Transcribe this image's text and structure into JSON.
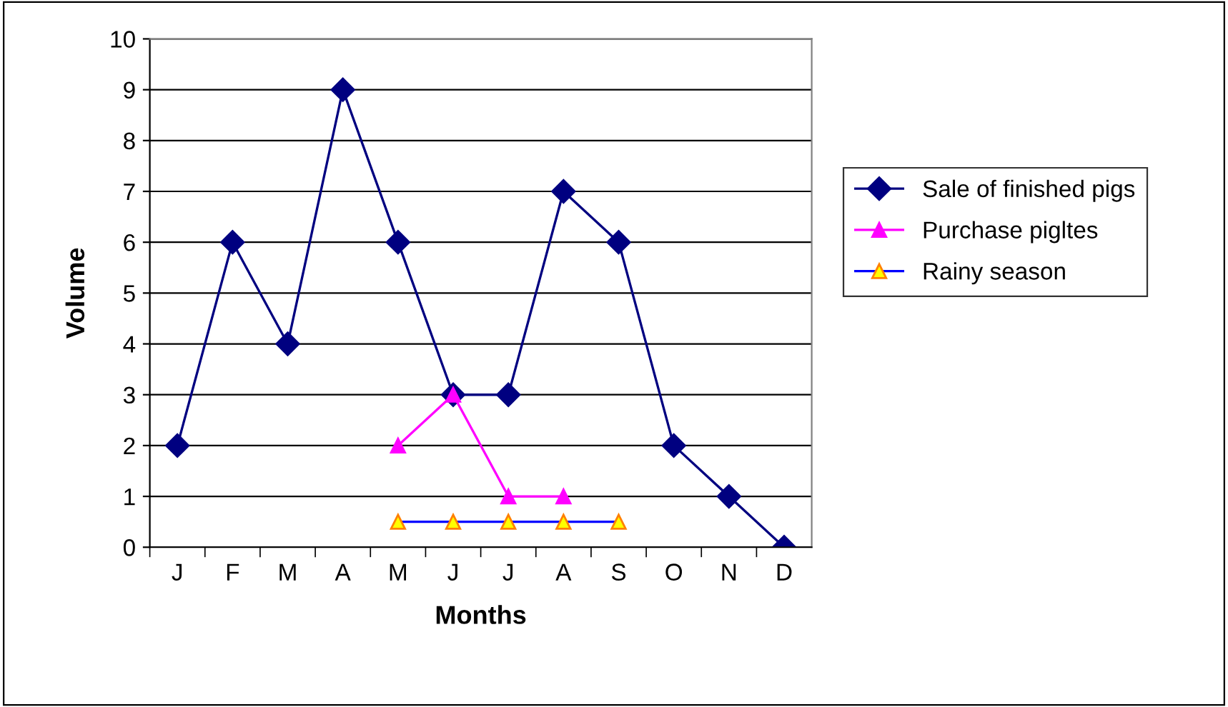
{
  "chart_data": {
    "type": "line",
    "xlabel": "Months",
    "ylabel": "Volume",
    "categories": [
      "J",
      "F",
      "M",
      "A",
      "M",
      "J",
      "J",
      "A",
      "S",
      "O",
      "N",
      "D"
    ],
    "series": [
      {
        "name": "Sale of finished pigs",
        "color": "#000080",
        "marker": "diamond",
        "values": [
          2,
          6,
          4,
          9,
          6,
          3,
          3,
          7,
          6,
          2,
          1,
          0
        ]
      },
      {
        "name": "Purchase pigltes",
        "color": "#ff00ff",
        "marker": "triangle",
        "values": [
          null,
          null,
          null,
          null,
          2,
          3,
          1,
          1,
          null,
          null,
          null,
          null
        ]
      },
      {
        "name": "Rainy season",
        "color": "#0000ff",
        "marker": "triangle",
        "colors": [
          null,
          null,
          null,
          null,
          "#ffff00",
          "#ffff00",
          "#ffff00",
          "#ffff00",
          "#ffff00",
          null,
          null,
          null
        ],
        "values": [
          null,
          null,
          null,
          null,
          0.5,
          0.5,
          0.5,
          0.5,
          0.5,
          null,
          null,
          null
        ]
      }
    ],
    "ylim": [
      0,
      10
    ],
    "yticks": [
      0,
      1,
      2,
      3,
      4,
      5,
      6,
      7,
      8,
      9,
      10
    ],
    "grid": "y",
    "legend": "right"
  }
}
